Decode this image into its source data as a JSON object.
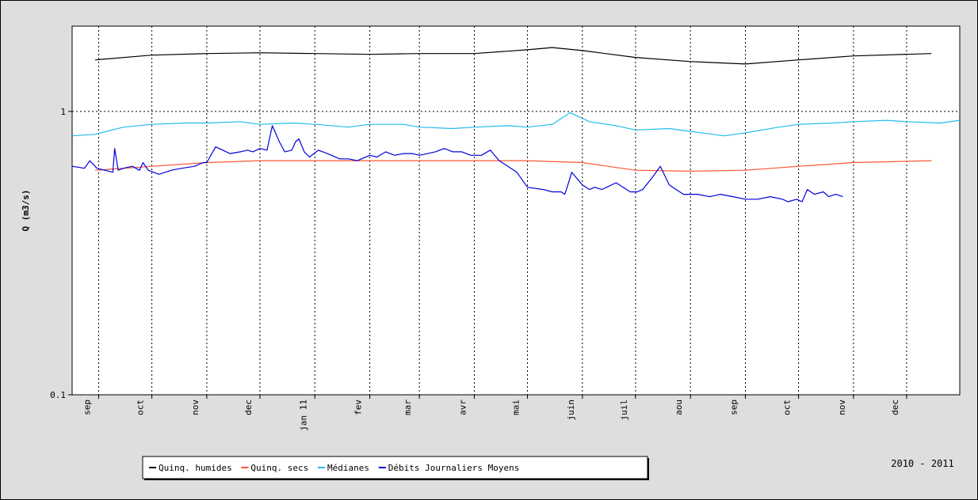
{
  "chart_data": {
    "type": "line",
    "ylabel": "Q (m3/s)",
    "yscale": "log",
    "ylim": [
      0.1,
      2.0
    ],
    "yticks": [
      0.1,
      1
    ],
    "ytick_labels": [
      "0.1",
      "1"
    ],
    "xlim": [
      "2010-08-17",
      "2011-12-31"
    ],
    "months": [
      {
        "label": "sep",
        "date": "2010-09-01"
      },
      {
        "label": "oct",
        "date": "2010-10-01"
      },
      {
        "label": "nov",
        "date": "2010-11-01"
      },
      {
        "label": "dec",
        "date": "2010-12-01"
      },
      {
        "label": "jan 11",
        "date": "2011-01-01"
      },
      {
        "label": "fev",
        "date": "2011-02-01"
      },
      {
        "label": "mar",
        "date": "2011-03-01"
      },
      {
        "label": "avr",
        "date": "2011-04-01"
      },
      {
        "label": "mai",
        "date": "2011-05-01"
      },
      {
        "label": "juin",
        "date": "2011-06-01"
      },
      {
        "label": "juil",
        "date": "2011-07-01"
      },
      {
        "label": "aou",
        "date": "2011-08-01"
      },
      {
        "label": "sep",
        "date": "2011-09-01"
      },
      {
        "label": "oct",
        "date": "2011-10-01"
      },
      {
        "label": "nov",
        "date": "2011-11-01"
      },
      {
        "label": "dec",
        "date": "2011-12-01"
      }
    ],
    "grid": {
      "x": "dotted",
      "y": "dotted"
    },
    "period_label": "2010 - 2011",
    "legend_position": "bottom",
    "series": [
      {
        "name": "Quinq. humides",
        "color": "#000000",
        "x": [
          "2010-08-30",
          "2010-10-01",
          "2010-11-01",
          "2010-12-01",
          "2011-01-01",
          "2011-02-01",
          "2011-03-01",
          "2011-04-01",
          "2011-05-01",
          "2011-05-15",
          "2011-06-01",
          "2011-07-01",
          "2011-08-01",
          "2011-09-01",
          "2011-10-01",
          "2011-11-01",
          "2011-12-15"
        ],
        "values": [
          1.52,
          1.58,
          1.6,
          1.61,
          1.6,
          1.59,
          1.6,
          1.6,
          1.65,
          1.68,
          1.64,
          1.55,
          1.5,
          1.47,
          1.52,
          1.57,
          1.6
        ]
      },
      {
        "name": "Quinq. secs",
        "color": "#ff5533",
        "x": [
          "2010-08-30",
          "2010-10-01",
          "2010-11-01",
          "2010-12-01",
          "2011-01-01",
          "2011-02-01",
          "2011-03-01",
          "2011-04-01",
          "2011-05-01",
          "2011-06-01",
          "2011-07-01",
          "2011-08-01",
          "2011-09-01",
          "2011-10-01",
          "2011-11-01",
          "2011-12-15"
        ],
        "values": [
          0.62,
          0.64,
          0.66,
          0.67,
          0.67,
          0.67,
          0.67,
          0.67,
          0.67,
          0.66,
          0.62,
          0.615,
          0.62,
          0.64,
          0.66,
          0.67
        ]
      },
      {
        "name": "Médianes",
        "color": "#22bbee",
        "x": [
          "2010-08-17",
          "2010-08-30",
          "2010-09-15",
          "2010-10-01",
          "2010-10-20",
          "2010-11-01",
          "2010-11-20",
          "2010-12-01",
          "2010-12-20",
          "2011-01-01",
          "2011-01-20",
          "2011-02-01",
          "2011-02-20",
          "2011-03-01",
          "2011-03-20",
          "2011-04-01",
          "2011-04-20",
          "2011-05-01",
          "2011-05-15",
          "2011-05-25",
          "2011-06-05",
          "2011-06-20",
          "2011-07-01",
          "2011-07-20",
          "2011-08-01",
          "2011-08-20",
          "2011-09-01",
          "2011-09-20",
          "2011-10-01",
          "2011-10-20",
          "2011-11-01",
          "2011-11-20",
          "2011-12-01",
          "2011-12-20",
          "2011-12-31"
        ],
        "values": [
          0.82,
          0.83,
          0.88,
          0.9,
          0.91,
          0.91,
          0.92,
          0.9,
          0.91,
          0.9,
          0.88,
          0.9,
          0.9,
          0.88,
          0.87,
          0.88,
          0.89,
          0.88,
          0.9,
          0.99,
          0.92,
          0.89,
          0.86,
          0.87,
          0.85,
          0.82,
          0.84,
          0.88,
          0.9,
          0.91,
          0.92,
          0.93,
          0.92,
          0.91,
          0.93
        ]
      },
      {
        "name": "Débits Journaliers Moyens",
        "color": "#0000dd",
        "x": [
          "2010-08-17",
          "2010-08-24",
          "2010-08-27",
          "2010-08-31",
          "2010-09-09",
          "2010-09-10",
          "2010-09-12",
          "2010-09-15",
          "2010-09-20",
          "2010-09-24",
          "2010-09-26",
          "2010-09-29",
          "2010-10-05",
          "2010-10-12",
          "2010-10-18",
          "2010-10-25",
          "2010-10-30",
          "2010-11-01",
          "2010-11-06",
          "2010-11-14",
          "2010-11-20",
          "2010-11-24",
          "2010-11-27",
          "2010-12-01",
          "2010-12-05",
          "2010-12-08",
          "2010-12-12",
          "2010-12-15",
          "2010-12-19",
          "2010-12-21",
          "2010-12-23",
          "2010-12-26",
          "2010-12-29",
          "2011-01-03",
          "2011-01-08",
          "2011-01-15",
          "2011-01-20",
          "2011-01-25",
          "2011-02-01",
          "2011-02-05",
          "2011-02-10",
          "2011-02-15",
          "2011-02-20",
          "2011-02-25",
          "2011-03-01",
          "2011-03-10",
          "2011-03-15",
          "2011-03-20",
          "2011-03-25",
          "2011-03-30",
          "2011-04-05",
          "2011-04-10",
          "2011-04-15",
          "2011-04-20",
          "2011-04-25",
          "2011-05-01",
          "2011-05-10",
          "2011-05-15",
          "2011-05-20",
          "2011-05-22",
          "2011-05-23",
          "2011-05-26",
          "2011-06-01",
          "2011-06-05",
          "2011-06-08",
          "2011-06-12",
          "2011-06-20",
          "2011-06-28",
          "2011-07-02",
          "2011-07-05",
          "2011-07-10",
          "2011-07-15",
          "2011-07-20",
          "2011-07-28",
          "2011-08-05",
          "2011-08-12",
          "2011-08-18",
          "2011-08-25",
          "2011-09-01",
          "2011-09-08",
          "2011-09-15",
          "2011-09-22",
          "2011-09-25",
          "2011-09-30",
          "2011-10-03",
          "2011-10-06",
          "2011-10-10",
          "2011-10-15",
          "2011-10-18",
          "2011-10-22",
          "2011-10-26"
        ],
        "values": [
          0.64,
          0.63,
          0.67,
          0.63,
          0.61,
          0.74,
          0.62,
          0.63,
          0.64,
          0.62,
          0.66,
          0.62,
          0.6,
          0.62,
          0.63,
          0.64,
          0.66,
          0.66,
          0.75,
          0.71,
          0.72,
          0.73,
          0.72,
          0.74,
          0.73,
          0.89,
          0.78,
          0.72,
          0.73,
          0.78,
          0.8,
          0.72,
          0.69,
          0.73,
          0.71,
          0.68,
          0.68,
          0.67,
          0.7,
          0.69,
          0.72,
          0.7,
          0.71,
          0.71,
          0.7,
          0.72,
          0.74,
          0.72,
          0.72,
          0.7,
          0.7,
          0.73,
          0.67,
          0.64,
          0.61,
          0.54,
          0.53,
          0.52,
          0.52,
          0.51,
          0.53,
          0.61,
          0.55,
          0.53,
          0.54,
          0.53,
          0.56,
          0.52,
          0.52,
          0.53,
          0.58,
          0.64,
          0.55,
          0.51,
          0.51,
          0.5,
          0.51,
          0.5,
          0.49,
          0.49,
          0.5,
          0.49,
          0.48,
          0.49,
          0.48,
          0.53,
          0.51,
          0.52,
          0.5,
          0.51,
          0.5
        ]
      }
    ]
  }
}
